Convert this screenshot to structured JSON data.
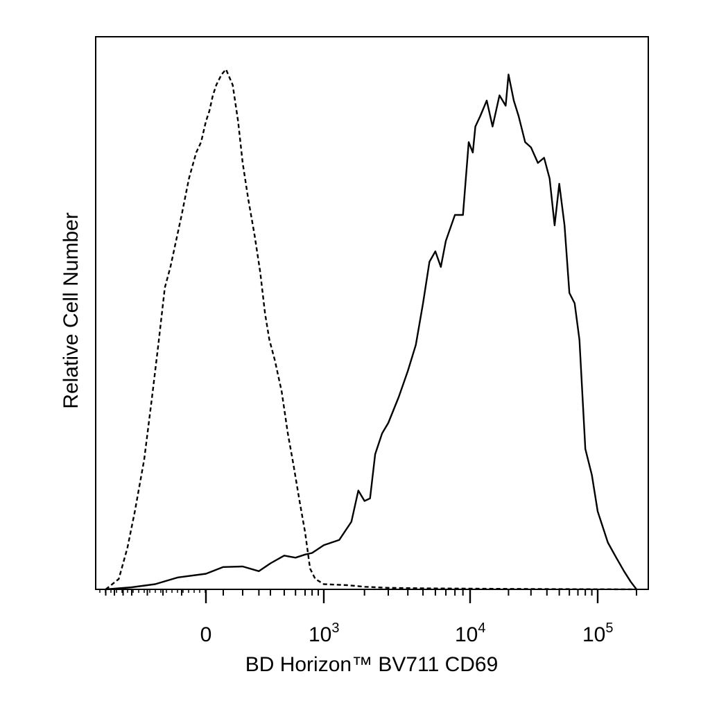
{
  "chart_data": {
    "type": "line",
    "x_scale": "biexponential",
    "xlabel": "BD Horizon™ BV711 CD69",
    "ylabel": "Relative Cell Number",
    "xticks": [
      {
        "value": 0,
        "base": "0",
        "exp": ""
      },
      {
        "value": 1000,
        "base": "10",
        "exp": "3"
      },
      {
        "value": 10000,
        "base": "10",
        "exp": "4"
      },
      {
        "value": 100000,
        "base": "10",
        "exp": "5"
      }
    ],
    "ylim": [
      0,
      100
    ],
    "grid": false,
    "legend": "none",
    "series": [
      {
        "style": "dashed",
        "points": [
          [
            -700,
            0
          ],
          [
            -550,
            2
          ],
          [
            -450,
            8
          ],
          [
            -380,
            15
          ],
          [
            -320,
            25
          ],
          [
            -270,
            37
          ],
          [
            -230,
            47
          ],
          [
            -190,
            58
          ],
          [
            -160,
            62
          ],
          [
            -130,
            67
          ],
          [
            -100,
            72
          ],
          [
            -70,
            79
          ],
          [
            -40,
            84
          ],
          [
            -20,
            86
          ],
          [
            0,
            90
          ],
          [
            20,
            92
          ],
          [
            40,
            95
          ],
          [
            60,
            97
          ],
          [
            90,
            99
          ],
          [
            110,
            100
          ],
          [
            140,
            97
          ],
          [
            170,
            90
          ],
          [
            200,
            82
          ],
          [
            230,
            75
          ],
          [
            270,
            68
          ],
          [
            310,
            61
          ],
          [
            350,
            53
          ],
          [
            390,
            48
          ],
          [
            430,
            44
          ],
          [
            480,
            38
          ],
          [
            530,
            30
          ],
          [
            580,
            24
          ],
          [
            640,
            17
          ],
          [
            700,
            11
          ],
          [
            770,
            4
          ],
          [
            850,
            2
          ],
          [
            1000,
            1
          ],
          [
            1500,
            0.8
          ],
          [
            2000,
            0.5
          ],
          [
            3000,
            0.3
          ],
          [
            5000,
            0.2
          ],
          [
            20000,
            0.1
          ],
          [
            200000,
            0
          ]
        ]
      },
      {
        "style": "solid",
        "points": [
          [
            -700,
            0
          ],
          [
            -400,
            0.4
          ],
          [
            -250,
            1
          ],
          [
            -120,
            2.3
          ],
          [
            0,
            3
          ],
          [
            100,
            4.3
          ],
          [
            200,
            4.4
          ],
          [
            300,
            3.5
          ],
          [
            400,
            5
          ],
          [
            500,
            6.5
          ],
          [
            600,
            6.1
          ],
          [
            700,
            6.7
          ],
          [
            800,
            7
          ],
          [
            1000,
            8.5
          ],
          [
            1300,
            9.5
          ],
          [
            1600,
            13
          ],
          [
            1800,
            19
          ],
          [
            2000,
            17
          ],
          [
            2200,
            17.5
          ],
          [
            2400,
            26
          ],
          [
            2700,
            30
          ],
          [
            3000,
            32
          ],
          [
            3500,
            37
          ],
          [
            4000,
            42
          ],
          [
            4500,
            47
          ],
          [
            5000,
            55
          ],
          [
            5500,
            63
          ],
          [
            6000,
            65
          ],
          [
            6500,
            62
          ],
          [
            7000,
            67
          ],
          [
            8000,
            72
          ],
          [
            9000,
            72
          ],
          [
            9800,
            86
          ],
          [
            10500,
            84
          ],
          [
            11000,
            89
          ],
          [
            12000,
            91
          ],
          [
            13500,
            94
          ],
          [
            15000,
            89
          ],
          [
            17000,
            95
          ],
          [
            19000,
            93
          ],
          [
            20000,
            99
          ],
          [
            22000,
            94
          ],
          [
            24000,
            91
          ],
          [
            27000,
            86
          ],
          [
            30000,
            85
          ],
          [
            34000,
            82
          ],
          [
            38000,
            83
          ],
          [
            42000,
            79
          ],
          [
            46000,
            70
          ],
          [
            50000,
            78
          ],
          [
            55000,
            70
          ],
          [
            60000,
            57
          ],
          [
            66000,
            55
          ],
          [
            72000,
            48
          ],
          [
            80000,
            27
          ],
          [
            90000,
            22
          ],
          [
            100000,
            15
          ],
          [
            120000,
            9
          ],
          [
            140000,
            6
          ],
          [
            160000,
            3.5
          ],
          [
            180000,
            1.5
          ],
          [
            200000,
            0
          ]
        ]
      }
    ]
  }
}
